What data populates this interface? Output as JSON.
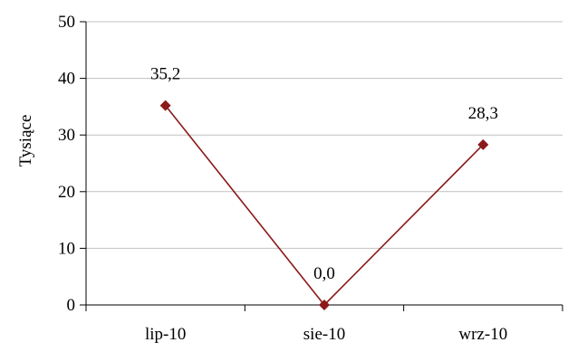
{
  "chart_data": {
    "type": "line",
    "categories": [
      "lip-10",
      "sie-10",
      "wrz-10"
    ],
    "series": [
      {
        "values": [
          35.2,
          0.0,
          28.3
        ],
        "labels": [
          "35,2",
          "0,0",
          "28,3"
        ]
      }
    ],
    "ylabel": "Tysiące",
    "xlabel": "",
    "title": "",
    "ylim": [
      0,
      50
    ],
    "yticks": [
      0,
      10,
      20,
      30,
      40,
      50
    ],
    "grid": true,
    "legend": "none",
    "colors": {
      "series": "#8b1a1a",
      "grid": "#c0c0c0",
      "axis": "#000000"
    }
  }
}
